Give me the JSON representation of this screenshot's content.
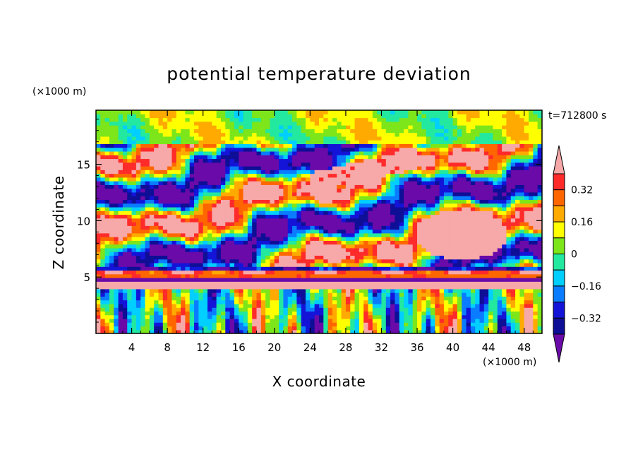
{
  "chart_data": {
    "type": "heatmap",
    "title": "potential temperature deviation",
    "xlabel": "X coordinate",
    "ylabel": "Z coordinate",
    "x_unit": "(×1000 m)",
    "y_unit": "(×1000 m)",
    "time_label": "t=712800 s",
    "xlim": [
      0,
      50
    ],
    "ylim": [
      0,
      19.8
    ],
    "x_ticks": [
      4,
      8,
      12,
      16,
      20,
      24,
      28,
      32,
      36,
      40,
      44,
      48
    ],
    "y_ticks": [
      5,
      10,
      15
    ],
    "colorbar": {
      "labels": [
        "0.32",
        "0.16",
        "0",
        "−0.16",
        "−0.32"
      ],
      "levels": [
        -0.4,
        -0.32,
        -0.24,
        -0.16,
        -0.08,
        0,
        0.08,
        0.16,
        0.24,
        0.32,
        0.4
      ],
      "colors": [
        "#6a0aa8",
        "#0e0e96",
        "#1414d8",
        "#0a7cff",
        "#00cfff",
        "#22e8a0",
        "#7ce61a",
        "#ffff00",
        "#ffaa00",
        "#ff6600",
        "#ff2a2a",
        "#f7a8a8"
      ],
      "extend": "both"
    },
    "bands": [
      {
        "z": [
          0,
          3.8
        ],
        "feature": "vertical plumes alternating warm/cold"
      },
      {
        "z": [
          3.8,
          5.8
        ],
        "feature": "thin horizontal layers"
      },
      {
        "z": [
          5.8,
          16.5
        ],
        "feature": "wavy warm/cold filaments"
      },
      {
        "z": [
          16.5,
          19.8
        ],
        "feature": "near-neutral green/yellow"
      }
    ]
  }
}
